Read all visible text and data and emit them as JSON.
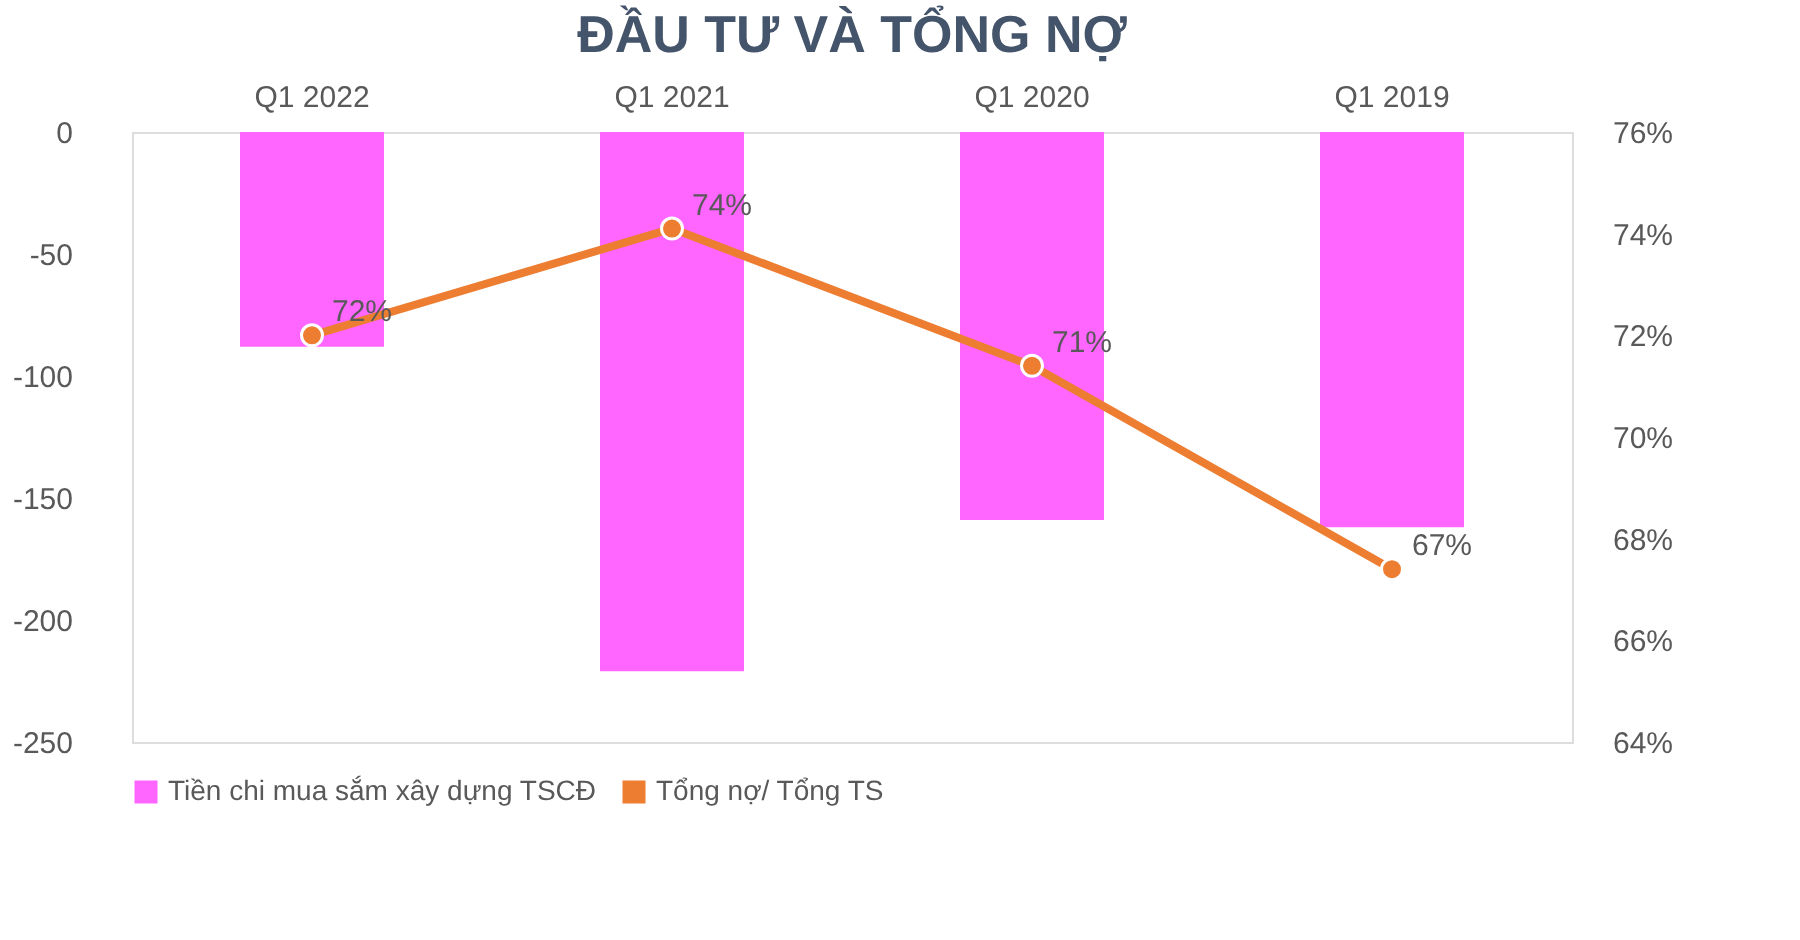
{
  "chart_data": {
    "type": "bar",
    "title": "ĐẦU TƯ VÀ TỔNG NỢ",
    "categories": [
      "Q1 2022",
      "Q1 2021",
      "Q1 2020",
      "Q1 2019"
    ],
    "series": [
      {
        "name": "Tiền chi mua sắm xây dựng TSCĐ",
        "color": "#ff66ff",
        "values": [
          -88,
          -221,
          -159,
          -162
        ]
      },
      {
        "name": "Tổng nợ/ Tổng TS",
        "type": "line",
        "axis": "y2",
        "color": "#ed7d31",
        "values": [
          72.0,
          74.1,
          71.4,
          67.4
        ],
        "value_labels": [
          "72%",
          "74%",
          "71%",
          "67%"
        ]
      }
    ],
    "ylim": [
      -250,
      0
    ],
    "yticks": [
      0,
      -50,
      -100,
      -150,
      -200,
      -250
    ],
    "y2lim": [
      64,
      76
    ],
    "y2ticks": [
      {
        "value": 64,
        "label": "64%"
      },
      {
        "value": 66,
        "label": "66%"
      },
      {
        "value": 68,
        "label": "68%"
      },
      {
        "value": 70,
        "label": "70%"
      },
      {
        "value": 72,
        "label": "72%"
      },
      {
        "value": 74,
        "label": "74%"
      },
      {
        "value": 76,
        "label": "76%"
      }
    ],
    "legend": "bottom",
    "grid": false,
    "marker": "circle",
    "line_style": "solid"
  }
}
